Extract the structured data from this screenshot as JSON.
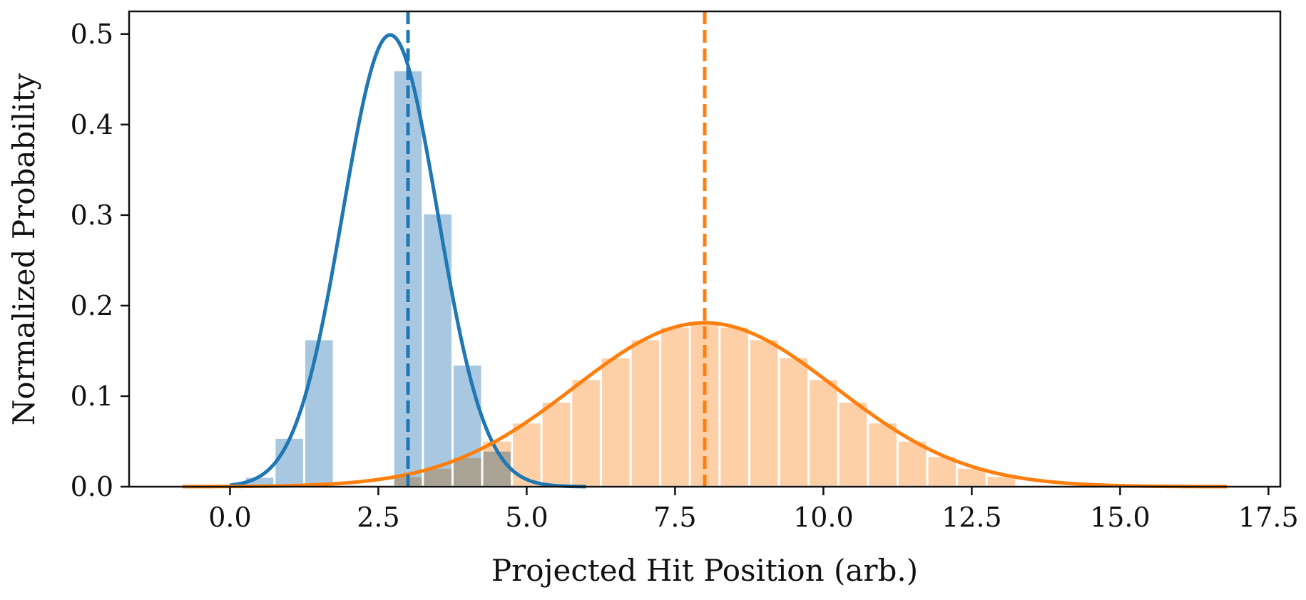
{
  "chart_data": {
    "type": "bar",
    "title": "",
    "xlabel": "Projected Hit Position (arb.)",
    "ylabel": "Normalized Probability",
    "xlim": [
      -1.7,
      17.7
    ],
    "ylim": [
      0.0,
      0.525
    ],
    "grid": false,
    "x_ticks": [
      0.0,
      2.5,
      5.0,
      7.5,
      10.0,
      12.5,
      15.0,
      17.5
    ],
    "x_tick_labels": [
      "0.0",
      "2.5",
      "5.0",
      "7.5",
      "10.0",
      "12.5",
      "15.0",
      "17.5"
    ],
    "y_ticks": [
      0.0,
      0.1,
      0.2,
      0.3,
      0.4,
      0.5
    ],
    "y_tick_labels": [
      "0.0",
      "0.1",
      "0.2",
      "0.3",
      "0.4",
      "0.5"
    ],
    "bar_width": 0.5,
    "series": [
      {
        "color": "#1f77b4",
        "bar_color": "#a8c8e2",
        "histogram": {
          "centers": [
            0.5,
            1.0,
            1.5,
            2.0,
            2.5,
            3.0,
            3.5,
            4.0,
            4.5
          ],
          "values": [
            0.011,
            0.054,
            0.163,
            0.0,
            0.0,
            0.46,
            0.302,
            0.135,
            0.04
          ]
        },
        "fit_curve": {
          "shape": "gaussian",
          "mean": 2.7,
          "peak": 0.499,
          "sigma": 0.8,
          "x_range": [
            0.0,
            6.0
          ]
        },
        "mean_line_x": 3.0
      },
      {
        "color": "#ff7f0e",
        "bar_color": "#ffc899",
        "histogram": {
          "centers": [
            3.0,
            3.5,
            4.0,
            4.5,
            5.0,
            5.5,
            6.0,
            6.5,
            7.0,
            7.5,
            8.0,
            8.5,
            9.0,
            9.5,
            10.0,
            10.5,
            11.0,
            11.5,
            12.0,
            12.5,
            13.0
          ],
          "values": [
            0.012,
            0.021,
            0.033,
            0.051,
            0.071,
            0.094,
            0.119,
            0.143,
            0.163,
            0.177,
            0.18,
            0.177,
            0.163,
            0.143,
            0.119,
            0.094,
            0.071,
            0.051,
            0.034,
            0.021,
            0.012
          ]
        },
        "fit_curve": {
          "shape": "gaussian",
          "mean": 8.0,
          "peak": 0.181,
          "sigma": 2.2,
          "x_range": [
            -0.8,
            16.8
          ]
        },
        "mean_line_x": 8.0
      }
    ]
  }
}
